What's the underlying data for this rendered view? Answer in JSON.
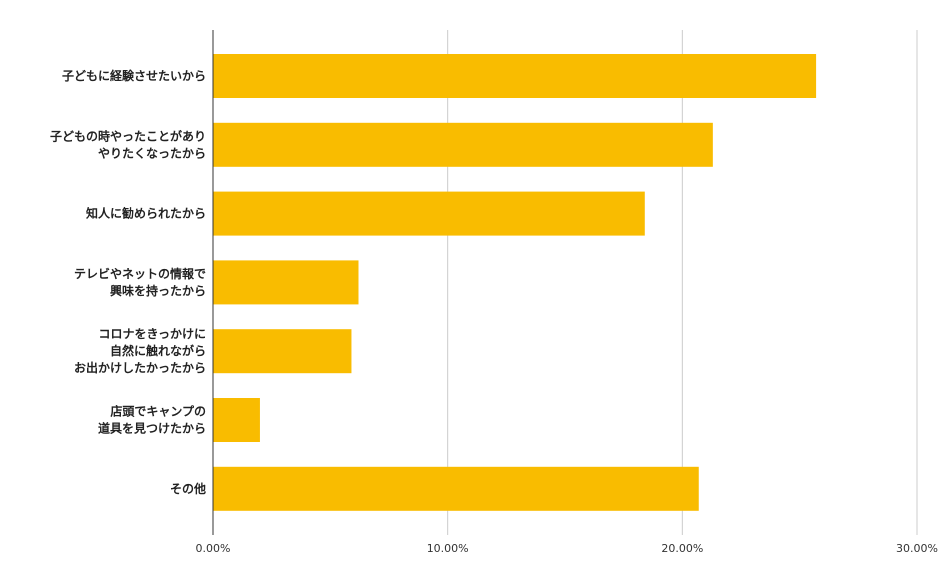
{
  "chart_data": {
    "type": "bar",
    "orientation": "horizontal",
    "categories": [
      [
        "子どもに経験させたいから"
      ],
      [
        "子どもの時やったことがあり",
        "やりたくなったから"
      ],
      [
        "知人に勧められたから"
      ],
      [
        "テレビやネットの情報で",
        "興味を持ったから"
      ],
      [
        "コロナをきっかけに",
        "自然に触れながら",
        "お出かけしたかったから"
      ],
      [
        "店頭でキャンプの",
        "道具を見つけたから"
      ],
      [
        "その他"
      ]
    ],
    "values": [
      25.7,
      21.3,
      18.4,
      6.2,
      5.9,
      2.0,
      20.7
    ],
    "xlim": [
      0,
      30
    ],
    "xticks": [
      "0.00%",
      "10.00%",
      "20.00%",
      "30.00%"
    ],
    "grid": true,
    "bar_color": "#f9bc00",
    "title": "",
    "xlabel": "",
    "ylabel": ""
  }
}
